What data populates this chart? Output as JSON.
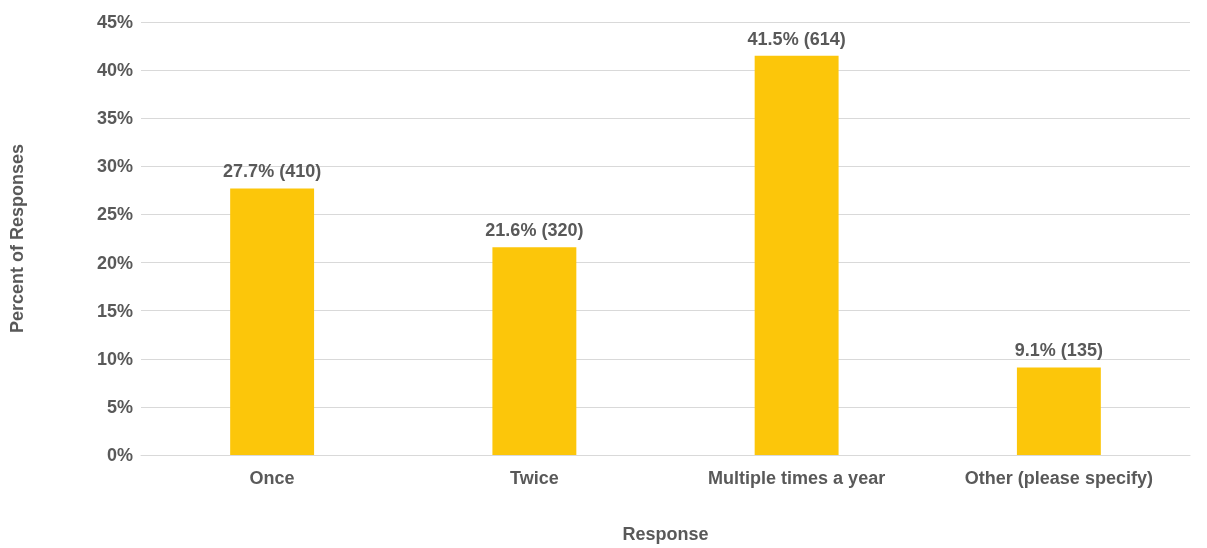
{
  "chart_data": {
    "type": "bar",
    "xlabel": "Response",
    "ylabel": "Percent of Responses",
    "categories": [
      "Once",
      "Twice",
      "Multiple times a year",
      "Other (please specify)"
    ],
    "values": [
      27.7,
      21.6,
      41.5,
      9.1
    ],
    "value_labels": [
      "27.7% (410)",
      "21.6% (320)",
      "41.5% (614)",
      "9.1% (135)"
    ],
    "color": "#fcc60a",
    "ylim": [
      0,
      45
    ],
    "yticks": [
      {
        "value": 0,
        "label": "0%"
      },
      {
        "value": 5,
        "label": "5%"
      },
      {
        "value": 10,
        "label": "10%"
      },
      {
        "value": 15,
        "label": "15%"
      },
      {
        "value": 20,
        "label": "20%"
      },
      {
        "value": 25,
        "label": "25%"
      },
      {
        "value": 30,
        "label": "30%"
      },
      {
        "value": 35,
        "label": "35%"
      },
      {
        "value": 40,
        "label": "40%"
      },
      {
        "value": 45,
        "label": "45%"
      }
    ],
    "grid": "y"
  }
}
